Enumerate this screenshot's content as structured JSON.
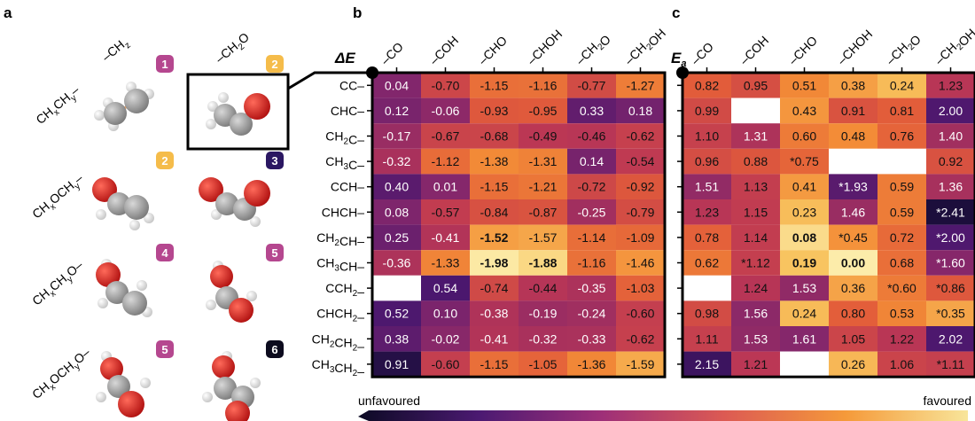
{
  "panel_labels": {
    "a": "a",
    "b": "b",
    "c": "c"
  },
  "panel_a": {
    "col_headers": [
      "–CH",
      "–CH"
    ],
    "col_header_subs": [
      "z",
      "2"
    ],
    "col_header_suffix": [
      "",
      "O"
    ],
    "row_labels": [
      {
        "parts": [
          "CH",
          "x",
          "CH",
          "y",
          "–"
        ]
      },
      {
        "parts": [
          "CH",
          "x",
          "OCH",
          "y",
          "–"
        ]
      },
      {
        "parts": [
          "CH",
          "x",
          "CH",
          "y",
          "O–"
        ]
      },
      {
        "parts": [
          "CH",
          "x",
          "OCH",
          "y",
          "O–"
        ]
      }
    ],
    "badges": [
      {
        "text": "1",
        "color": "#b5478f"
      },
      {
        "text": "2",
        "color": "#f5bc4a"
      },
      {
        "text": "2",
        "color": "#f5bc4a"
      },
      {
        "text": "3",
        "color": "#2b1762"
      },
      {
        "text": "4",
        "color": "#b5478f"
      },
      {
        "text": "5",
        "color": "#b5478f"
      },
      {
        "text": "5",
        "color": "#b5478f"
      },
      {
        "text": "6",
        "color": "#0c0b1e"
      }
    ],
    "atom_colors": {
      "carbon": "#9a9a9a",
      "oxygen": "#d01c1c",
      "hydrogen": "#e2e2e2",
      "bond": "#f4a261"
    }
  },
  "colorbar": {
    "left_label": "unfavoured",
    "right_label": "favoured",
    "stops": [
      "#0c0a24",
      "#4c1a72",
      "#9e2f78",
      "#dc5a53",
      "#f59a3a",
      "#f8e59a"
    ]
  },
  "chart_data": [
    {
      "type": "heatmap",
      "panel": "b",
      "title_main": "ΔE",
      "title_sub": "",
      "columns": [
        "–CO",
        "–COH",
        "–CHO",
        "–CHOH",
        "–CH2O",
        "–CH2OH"
      ],
      "rows": [
        "CC–",
        "CHC–",
        "CH2C–",
        "CH3C–",
        "CCH–",
        "CHCH–",
        "CH2CH–",
        "CH3CH–",
        "CCH2–",
        "CHCH2–",
        "CH2CH2–",
        "CH3CH2–"
      ],
      "values": [
        [
          "0.04",
          "-0.70",
          "-1.15",
          "-1.16",
          "-0.77",
          "-1.27"
        ],
        [
          "0.12",
          "-0.06",
          "-0.93",
          "-0.95",
          "0.33",
          "0.18"
        ],
        [
          "-0.17",
          "-0.67",
          "-0.68",
          "-0.49",
          "-0.46",
          "-0.62"
        ],
        [
          "-0.32",
          "-1.12",
          "-1.38",
          "-1.31",
          "0.14",
          "-0.54"
        ],
        [
          "0.40",
          "0.01",
          "-1.15",
          "-1.21",
          "-0.72",
          "-0.92"
        ],
        [
          "0.08",
          "-0.57",
          "-0.84",
          "-0.87",
          "-0.25",
          "-0.79"
        ],
        [
          "0.25",
          "-0.41",
          "-1.52",
          "-1.57",
          "-1.14",
          "-1.09"
        ],
        [
          "-0.36",
          "-1.33",
          "-1.98",
          "-1.88",
          "-1.16",
          "-1.46"
        ],
        [
          "",
          "0.54",
          "-0.74",
          "-0.44",
          "-0.35",
          "-1.03"
        ],
        [
          "0.52",
          "0.10",
          "-0.38",
          "-0.19",
          "-0.24",
          "-0.60"
        ],
        [
          "0.38",
          "-0.02",
          "-0.41",
          "-0.32",
          "-0.33",
          "-0.62"
        ],
        [
          "0.91",
          "-0.60",
          "-1.15",
          "-1.05",
          "-1.36",
          "-1.59"
        ]
      ],
      "bold": [
        [
          6,
          2
        ],
        [
          7,
          2
        ],
        [
          7,
          3
        ]
      ],
      "range": [
        -2.0,
        1.0
      ],
      "direction": "lower_favoured"
    },
    {
      "type": "heatmap",
      "panel": "c",
      "title_main": "E",
      "title_sub": "a",
      "columns": [
        "–CO",
        "–COH",
        "–CHO",
        "–CHOH",
        "–CH2O",
        "–CH2OH"
      ],
      "rows": [
        "CC–",
        "CHC–",
        "CH2C–",
        "CH3C–",
        "CCH–",
        "CHCH–",
        "CH2CH–",
        "CH3CH–",
        "CCH2–",
        "CHCH2–",
        "CH2CH2–",
        "CH3CH2–"
      ],
      "values": [
        [
          "0.82",
          "0.95",
          "0.51",
          "0.38",
          "0.24",
          "1.23"
        ],
        [
          "0.99",
          "",
          "0.43",
          "0.91",
          "0.81",
          "2.00"
        ],
        [
          "1.10",
          "1.31",
          "0.60",
          "0.48",
          "0.76",
          "1.40"
        ],
        [
          "0.96",
          "0.88",
          "*0.75",
          "",
          "",
          "0.92"
        ],
        [
          "1.51",
          "1.13",
          "0.41",
          "*1.93",
          "0.59",
          "1.36"
        ],
        [
          "1.23",
          "1.15",
          "0.23",
          "1.46",
          "0.59",
          "*2.41"
        ],
        [
          "0.78",
          "1.14",
          "0.08",
          "*0.45",
          "0.72",
          "*2.00"
        ],
        [
          "0.62",
          "*1.12",
          "0.19",
          "0.00",
          "0.68",
          "*1.60"
        ],
        [
          "",
          "1.24",
          "1.53",
          "0.36",
          "*0.60",
          "*0.86"
        ],
        [
          "0.98",
          "1.56",
          "0.24",
          "0.80",
          "0.53",
          "*0.35"
        ],
        [
          "1.11",
          "1.53",
          "1.61",
          "1.05",
          "1.22",
          "2.02"
        ],
        [
          "2.15",
          "1.21",
          "",
          "0.26",
          "1.06",
          "*1.11"
        ]
      ],
      "bold": [
        [
          6,
          2
        ],
        [
          7,
          2
        ],
        [
          7,
          3
        ]
      ],
      "range": [
        0.0,
        2.4
      ],
      "direction": "lower_favoured"
    }
  ]
}
